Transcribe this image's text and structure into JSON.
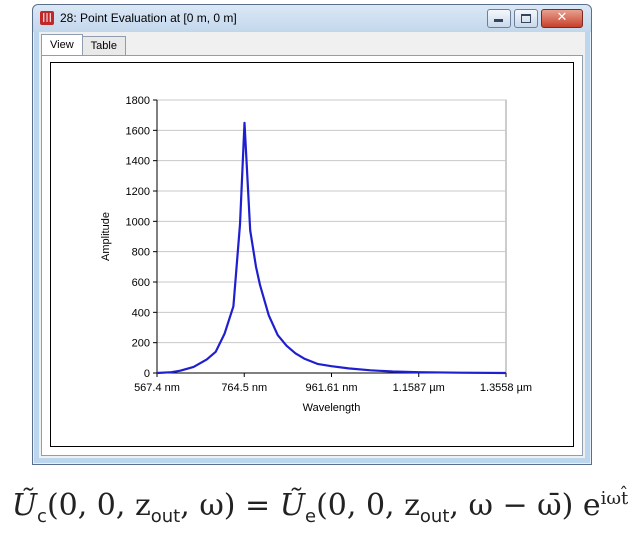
{
  "window": {
    "title": "28: Point Evaluation at [0 m, 0 m]",
    "icon_glyph": "|||",
    "tabs": [
      {
        "label": "View",
        "active": true
      },
      {
        "label": "Table",
        "active": false
      }
    ]
  },
  "chart_data": {
    "type": "line",
    "xlabel": "Wavelength",
    "ylabel": "Amplitude",
    "ylim": [
      0,
      1800
    ],
    "yticks": [
      0,
      200,
      400,
      600,
      800,
      1000,
      1200,
      1400,
      1600,
      1800
    ],
    "xticks": [
      {
        "value": 567.4,
        "label": "567.4 nm"
      },
      {
        "value": 764.5,
        "label": "764.5 nm"
      },
      {
        "value": 961.61,
        "label": "961.61 nm"
      },
      {
        "value": 1158.7,
        "label": "1.1587 µm"
      },
      {
        "value": 1355.8,
        "label": "1.3558 µm"
      }
    ],
    "xlim": [
      567.4,
      1355.8
    ],
    "grid": true,
    "color": "#1f1fd0",
    "series": [
      {
        "x": [
          567.4,
          600,
          620,
          650,
          680,
          700,
          720,
          740,
          755,
          765,
          778,
          791,
          800,
          820,
          840,
          860,
          880,
          900,
          930,
          961.61,
          1000,
          1050,
          1100,
          1158.7,
          1250,
          1355.8
        ],
        "values": [
          0,
          5,
          15,
          40,
          90,
          140,
          260,
          440,
          980,
          1650,
          940,
          700,
          580,
          380,
          250,
          180,
          130,
          95,
          60,
          45,
          30,
          18,
          10,
          5,
          2,
          0
        ]
      }
    ]
  },
  "formula": {
    "lhs_func": "Ũ",
    "lhs_sub": "c",
    "lhs_args": "(0, 0, z",
    "lhs_zsub": "out",
    "lhs_tail": ", ω) = ",
    "rhs_func": "Ũ",
    "rhs_sub": "e",
    "rhs_args": "(0, 0, z",
    "rhs_zsub": "out",
    "rhs_tail": ", ω − ω̄) e",
    "rhs_exp": "iωt̂"
  }
}
